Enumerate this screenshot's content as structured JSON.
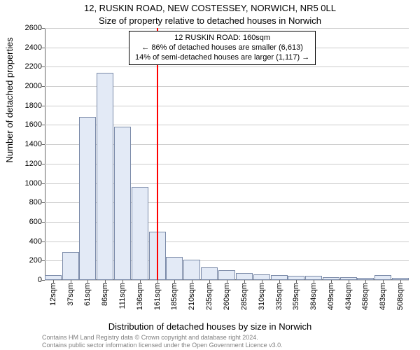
{
  "title_line1": "12, RUSKIN ROAD, NEW COSTESSEY, NORWICH, NR5 0LL",
  "title_line2": "Size of property relative to detached houses in Norwich",
  "ylabel": "Number of detached properties",
  "xlabel": "Distribution of detached houses by size in Norwich",
  "footer_line1": "Contains HM Land Registry data © Crown copyright and database right 2024.",
  "footer_line2": "Contains public sector information licensed under the Open Government Licence v3.0.",
  "chart": {
    "type": "histogram",
    "background_color": "#ffffff",
    "grid_color": "#cccccc",
    "axis_color": "#666666",
    "bar_fill": "#e3eaf6",
    "bar_border": "#7a8aa8",
    "ref_line_color": "#ff0000",
    "ref_value": 160,
    "y_min": 0,
    "y_max": 2600,
    "y_tick_step": 200,
    "x_tick_labels": [
      "12sqm",
      "37sqm",
      "61sqm",
      "86sqm",
      "111sqm",
      "136sqm",
      "161sqm",
      "185sqm",
      "210sqm",
      "235sqm",
      "260sqm",
      "285sqm",
      "310sqm",
      "335sqm",
      "359sqm",
      "384sqm",
      "409sqm",
      "434sqm",
      "458sqm",
      "483sqm",
      "508sqm"
    ],
    "x_tick_centers": [
      12,
      37,
      61,
      86,
      111,
      136,
      161,
      185,
      210,
      235,
      260,
      285,
      310,
      335,
      359,
      384,
      409,
      434,
      458,
      483,
      508
    ],
    "x_min": 0,
    "x_max": 520,
    "bar_width_units": 24,
    "values": [
      50,
      290,
      1680,
      2140,
      1580,
      960,
      500,
      240,
      210,
      130,
      100,
      70,
      60,
      50,
      40,
      40,
      30,
      30,
      20,
      50,
      20
    ],
    "annotation": {
      "line1": "12 RUSKIN ROAD: 160sqm",
      "line2": "← 86% of detached houses are smaller (6,613)",
      "line3": "14% of semi-detached houses are larger (1,117) →",
      "border_color": "#000000",
      "bg_color": "#ffffff",
      "fontsize": 11
    }
  }
}
